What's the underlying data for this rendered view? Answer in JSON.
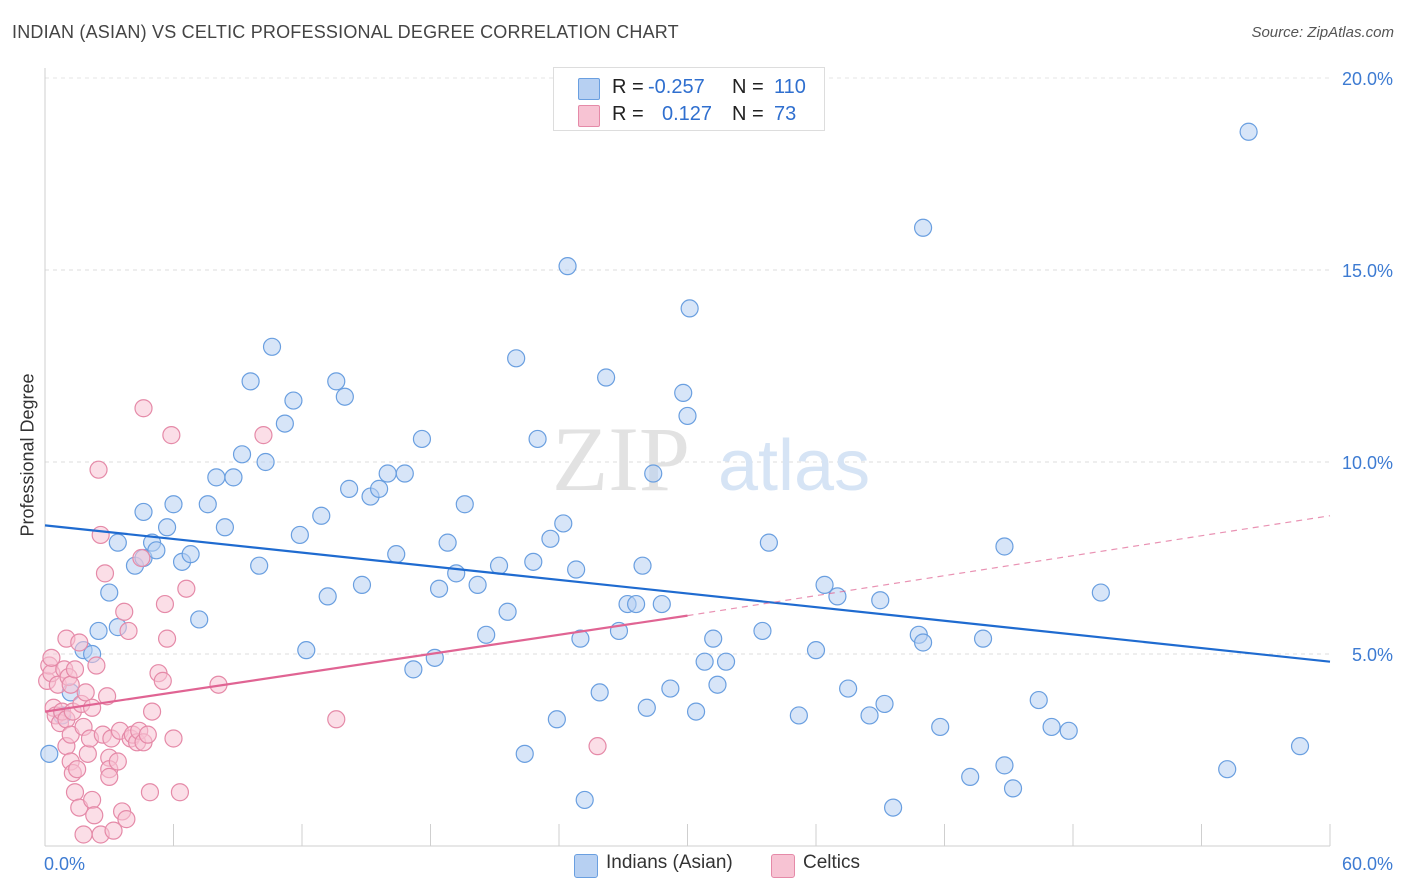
{
  "header": {
    "title": "INDIAN (ASIAN) VS CELTIC PROFESSIONAL DEGREE CORRELATION CHART",
    "source": "Source: ZipAtlas.com"
  },
  "watermark": {
    "zip": "ZIP",
    "atlas": "atlas"
  },
  "colors": {
    "blue": "#6a9fe0",
    "blue_fill": "#b7d0f2",
    "blue_line": "#1f6bd0",
    "pink": "#e58aa8",
    "pink_fill": "#f7c3d3",
    "pink_line": "#e06493",
    "tick_text": "#3d7bd2"
  },
  "legend": {
    "rows": [
      {
        "r_label": "R =",
        "r_value": "-0.257",
        "n_label": "N =",
        "n_value": "110"
      },
      {
        "r_label": "R =",
        "r_value": "0.127",
        "n_label": "N =",
        "n_value": "73"
      }
    ],
    "bottom": [
      "Indians (Asian)",
      "Celtics"
    ]
  },
  "chart_data": {
    "type": "scatter",
    "title": "INDIAN (ASIAN) VS CELTIC PROFESSIONAL DEGREE CORRELATION CHART",
    "xlabel": "",
    "ylabel": "Professional Degree",
    "xlim": [
      0,
      60
    ],
    "ylim": [
      0,
      20
    ],
    "x_tick_labels": [
      "0.0%",
      "60.0%"
    ],
    "y_tick_labels": [
      "5.0%",
      "10.0%",
      "15.0%",
      "20.0%"
    ],
    "y_ticks": [
      5,
      10,
      15,
      20
    ],
    "x_minor_ticks": [
      0,
      6,
      12,
      18,
      24,
      30,
      36,
      42,
      48,
      54,
      60
    ],
    "grid": true,
    "legend_position": "top-center",
    "series": [
      {
        "name": "Indians (Asian)",
        "r": -0.257,
        "n": 110,
        "trend": {
          "x0": 0,
          "y0": 8.35,
          "x1": 60,
          "y1": 4.8
        },
        "points": [
          [
            0.2,
            2.4
          ],
          [
            0.8,
            3.4
          ],
          [
            1.2,
            4.0
          ],
          [
            1.8,
            5.1
          ],
          [
            2.2,
            5.0
          ],
          [
            2.5,
            5.6
          ],
          [
            3.0,
            6.6
          ],
          [
            3.4,
            5.7
          ],
          [
            3.4,
            7.9
          ],
          [
            4.2,
            7.3
          ],
          [
            4.6,
            7.5
          ],
          [
            4.6,
            8.7
          ],
          [
            5.0,
            7.9
          ],
          [
            5.2,
            7.7
          ],
          [
            5.7,
            8.3
          ],
          [
            6.0,
            8.9
          ],
          [
            6.4,
            7.4
          ],
          [
            6.8,
            7.6
          ],
          [
            7.2,
            5.9
          ],
          [
            7.6,
            8.9
          ],
          [
            8.0,
            9.6
          ],
          [
            8.4,
            8.3
          ],
          [
            8.8,
            9.6
          ],
          [
            9.2,
            10.2
          ],
          [
            9.6,
            12.1
          ],
          [
            10.0,
            7.3
          ],
          [
            10.3,
            10.0
          ],
          [
            10.6,
            13.0
          ],
          [
            11.2,
            11.0
          ],
          [
            11.6,
            11.6
          ],
          [
            11.9,
            8.1
          ],
          [
            12.2,
            5.1
          ],
          [
            12.9,
            8.6
          ],
          [
            13.2,
            6.5
          ],
          [
            13.6,
            12.1
          ],
          [
            14.0,
            11.7
          ],
          [
            14.2,
            9.3
          ],
          [
            14.8,
            6.8
          ],
          [
            15.2,
            9.1
          ],
          [
            15.6,
            9.3
          ],
          [
            16.0,
            9.7
          ],
          [
            16.4,
            7.6
          ],
          [
            16.8,
            9.7
          ],
          [
            17.2,
            4.6
          ],
          [
            17.6,
            10.6
          ],
          [
            18.2,
            4.9
          ],
          [
            18.4,
            6.7
          ],
          [
            18.8,
            7.9
          ],
          [
            19.2,
            7.1
          ],
          [
            19.6,
            8.9
          ],
          [
            20.2,
            6.8
          ],
          [
            20.6,
            5.5
          ],
          [
            21.2,
            7.3
          ],
          [
            21.6,
            6.1
          ],
          [
            22.0,
            12.7
          ],
          [
            22.4,
            2.4
          ],
          [
            22.8,
            7.4
          ],
          [
            23.0,
            10.6
          ],
          [
            23.6,
            8.0
          ],
          [
            23.9,
            3.3
          ],
          [
            24.2,
            8.4
          ],
          [
            24.4,
            15.1
          ],
          [
            24.8,
            7.2
          ],
          [
            25.0,
            5.4
          ],
          [
            25.2,
            1.2
          ],
          [
            25.9,
            4.0
          ],
          [
            26.2,
            12.2
          ],
          [
            26.8,
            5.6
          ],
          [
            27.2,
            6.3
          ],
          [
            27.6,
            6.3
          ],
          [
            27.9,
            7.3
          ],
          [
            28.1,
            3.6
          ],
          [
            28.4,
            9.7
          ],
          [
            28.8,
            6.3
          ],
          [
            29.2,
            4.1
          ],
          [
            29.8,
            11.8
          ],
          [
            30.0,
            11.2
          ],
          [
            30.1,
            14.0
          ],
          [
            30.4,
            3.5
          ],
          [
            30.8,
            4.8
          ],
          [
            31.2,
            5.4
          ],
          [
            31.4,
            4.2
          ],
          [
            31.8,
            4.8
          ],
          [
            33.5,
            5.6
          ],
          [
            33.8,
            7.9
          ],
          [
            35.2,
            3.4
          ],
          [
            36.0,
            5.1
          ],
          [
            36.4,
            6.8
          ],
          [
            37.0,
            6.5
          ],
          [
            37.5,
            4.1
          ],
          [
            38.5,
            3.4
          ],
          [
            39.0,
            6.4
          ],
          [
            39.2,
            3.7
          ],
          [
            39.6,
            1.0
          ],
          [
            40.8,
            5.5
          ],
          [
            41.0,
            5.3
          ],
          [
            41.0,
            16.1
          ],
          [
            41.8,
            3.1
          ],
          [
            43.2,
            1.8
          ],
          [
            43.8,
            5.4
          ],
          [
            44.8,
            2.1
          ],
          [
            44.8,
            7.8
          ],
          [
            45.2,
            1.5
          ],
          [
            46.4,
            3.8
          ],
          [
            47.0,
            3.1
          ],
          [
            47.8,
            3.0
          ],
          [
            49.3,
            6.6
          ],
          [
            55.2,
            2.0
          ],
          [
            56.2,
            18.6
          ],
          [
            58.6,
            2.6
          ]
        ]
      },
      {
        "name": "Celtics",
        "r": 0.127,
        "n": 73,
        "trend": {
          "x0": 0,
          "y0": 3.5,
          "x1": 30,
          "y1": 6.0
        },
        "trend_extension": {
          "x0": 30,
          "y0": 6.0,
          "x1": 60,
          "y1": 8.6
        },
        "points": [
          [
            0.1,
            4.3
          ],
          [
            0.2,
            4.7
          ],
          [
            0.3,
            4.5
          ],
          [
            0.3,
            4.9
          ],
          [
            0.4,
            3.6
          ],
          [
            0.5,
            3.4
          ],
          [
            0.6,
            4.2
          ],
          [
            0.7,
            3.2
          ],
          [
            0.8,
            3.5
          ],
          [
            0.9,
            4.6
          ],
          [
            1.0,
            3.3
          ],
          [
            1.0,
            2.6
          ],
          [
            1.0,
            5.4
          ],
          [
            1.1,
            4.4
          ],
          [
            1.2,
            4.2
          ],
          [
            1.2,
            2.9
          ],
          [
            1.2,
            2.2
          ],
          [
            1.3,
            3.5
          ],
          [
            1.3,
            1.9
          ],
          [
            1.4,
            1.4
          ],
          [
            1.4,
            4.6
          ],
          [
            1.5,
            2.0
          ],
          [
            1.6,
            1.0
          ],
          [
            1.6,
            5.3
          ],
          [
            1.7,
            3.7
          ],
          [
            1.8,
            0.3
          ],
          [
            1.8,
            3.1
          ],
          [
            1.9,
            4.0
          ],
          [
            2.0,
            2.4
          ],
          [
            2.1,
            2.8
          ],
          [
            2.2,
            1.2
          ],
          [
            2.2,
            3.6
          ],
          [
            2.3,
            0.8
          ],
          [
            2.4,
            4.7
          ],
          [
            2.5,
            9.8
          ],
          [
            2.6,
            0.3
          ],
          [
            2.6,
            8.1
          ],
          [
            2.7,
            2.9
          ],
          [
            2.8,
            7.1
          ],
          [
            2.9,
            3.9
          ],
          [
            3.0,
            2.3
          ],
          [
            3.0,
            2.0
          ],
          [
            3.0,
            1.8
          ],
          [
            3.1,
            2.8
          ],
          [
            3.2,
            0.4
          ],
          [
            3.4,
            2.2
          ],
          [
            3.5,
            3.0
          ],
          [
            3.6,
            0.9
          ],
          [
            3.7,
            6.1
          ],
          [
            3.8,
            0.7
          ],
          [
            3.9,
            5.6
          ],
          [
            4.0,
            2.8
          ],
          [
            4.1,
            2.9
          ],
          [
            4.3,
            2.7
          ],
          [
            4.4,
            3.0
          ],
          [
            4.5,
            7.5
          ],
          [
            4.6,
            2.7
          ],
          [
            4.6,
            11.4
          ],
          [
            4.8,
            2.9
          ],
          [
            4.9,
            1.4
          ],
          [
            5.0,
            3.5
          ],
          [
            5.3,
            4.5
          ],
          [
            5.5,
            4.3
          ],
          [
            5.6,
            6.3
          ],
          [
            5.7,
            5.4
          ],
          [
            5.9,
            10.7
          ],
          [
            6.0,
            2.8
          ],
          [
            6.3,
            1.4
          ],
          [
            6.6,
            6.7
          ],
          [
            8.1,
            4.2
          ],
          [
            10.2,
            10.7
          ],
          [
            13.6,
            3.3
          ],
          [
            25.8,
            2.6
          ]
        ]
      }
    ]
  }
}
